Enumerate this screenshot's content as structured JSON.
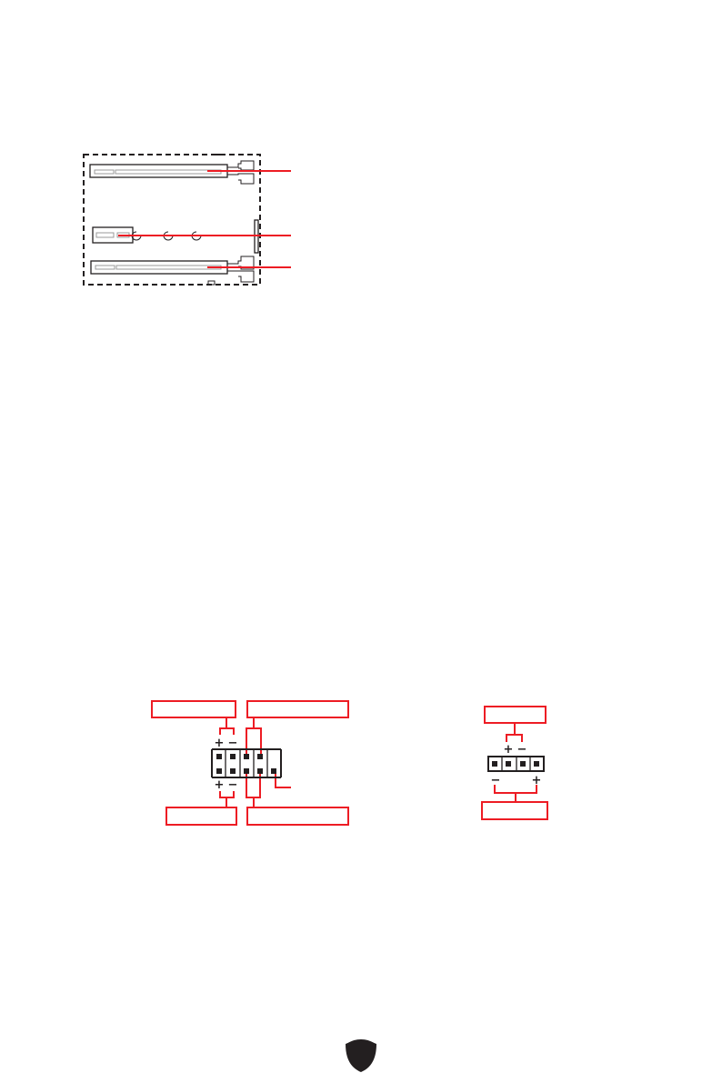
{
  "colors": {
    "accent": "#ed1c24",
    "ink": "#231f20",
    "slot_inner": "#999999"
  },
  "slot_diagram": {
    "icon": "expansion-slots-diagram",
    "slots": [
      "slot-top",
      "slot-short",
      "slot-bottom"
    ]
  },
  "front_panel_header": {
    "icon": "pin-header-diagram",
    "top_signs": {
      "plus": "+",
      "minus": "−"
    },
    "bottom_signs": {
      "plus": "+",
      "minus": "−"
    }
  },
  "four_pin_header": {
    "icon": "pin-header-diagram",
    "top_signs": {
      "plus": "+",
      "minus": "−"
    },
    "bottom_signs": {
      "minus": "−",
      "plus": "+"
    }
  },
  "footer": {
    "logo": "shield-logo-icon"
  }
}
